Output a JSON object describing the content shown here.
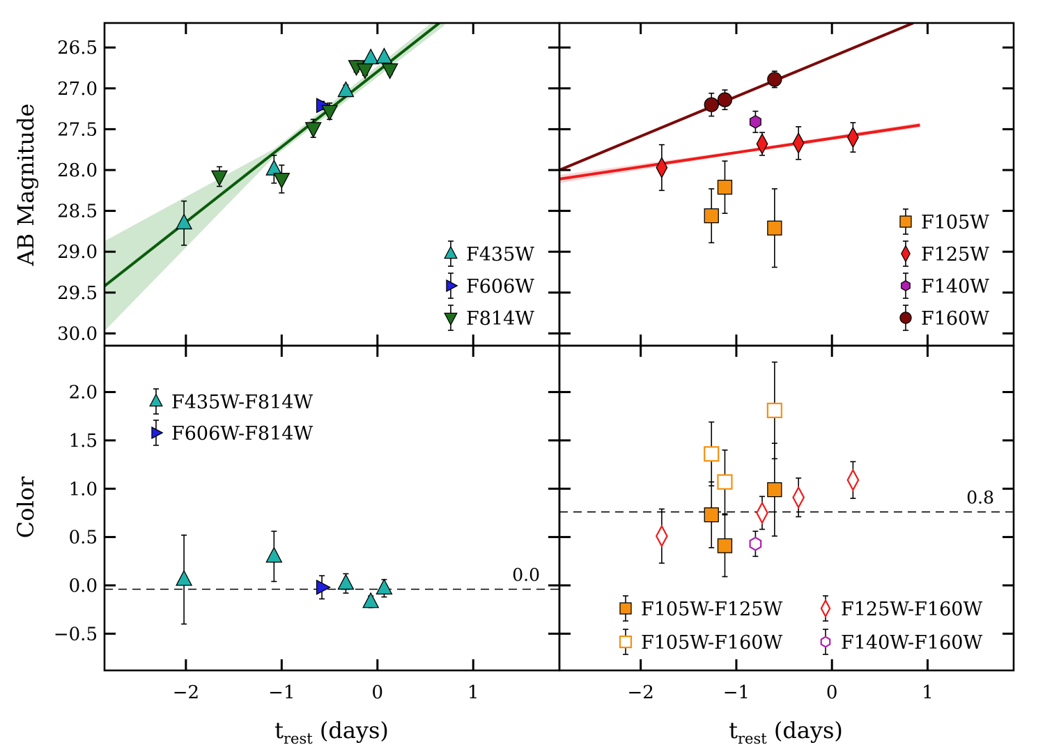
{
  "chart_data": [
    {
      "panel": "top-left",
      "type": "scatter",
      "ylabel": "AB Magnitude",
      "xlim": [
        -2.85,
        1.9
      ],
      "ylim": [
        30.15,
        26.2
      ],
      "y_inverted": true,
      "yticks": [
        "26.5",
        "27.0",
        "27.5",
        "28.0",
        "28.5",
        "29.0",
        "29.5",
        "30.0"
      ],
      "ytick_values": [
        26.5,
        27.0,
        27.5,
        28.0,
        28.5,
        29.0,
        29.5,
        30.0
      ],
      "legend_position": "lower right",
      "series": [
        {
          "name": "F435W",
          "marker": "triangle-up",
          "color": "#20b2aa",
          "points": [
            {
              "x": -2.02,
              "y": 28.65,
              "err": 0.27
            },
            {
              "x": -1.08,
              "y": 27.99,
              "err": 0.17
            },
            {
              "x": -0.33,
              "y": 27.03,
              "err": 0.07
            },
            {
              "x": -0.07,
              "y": 26.63,
              "err": 0.05
            },
            {
              "x": 0.07,
              "y": 26.62,
              "err": 0.05
            }
          ]
        },
        {
          "name": "F606W",
          "marker": "triangle-right",
          "color": "#1f1fe0",
          "points": [
            {
              "x": -0.58,
              "y": 27.21,
              "err": 0.05
            }
          ]
        },
        {
          "name": "F814W",
          "marker": "triangle-down",
          "color": "#1e6e1e",
          "points": [
            {
              "x": -1.65,
              "y": 28.08,
              "err": 0.12
            },
            {
              "x": -1.0,
              "y": 28.11,
              "err": 0.17
            },
            {
              "x": -0.67,
              "y": 27.49,
              "err": 0.11
            },
            {
              "x": -0.5,
              "y": 27.28,
              "err": 0.1
            },
            {
              "x": -0.22,
              "y": 26.73,
              "err": 0.07
            },
            {
              "x": -0.13,
              "y": 26.77,
              "err": 0.07
            },
            {
              "x": 0.13,
              "y": 26.77,
              "err": 0.06
            }
          ]
        }
      ],
      "fit_lines": [
        {
          "color": "#0b5c0b",
          "x": [
            -2.85,
            0.7
          ],
          "y": [
            29.42,
            26.15
          ],
          "band_color": "#a8d1a8",
          "band_width": [
            0.55,
            0.08
          ]
        }
      ]
    },
    {
      "panel": "top-right",
      "type": "scatter",
      "xlim": [
        -2.85,
        1.9
      ],
      "ylim": [
        30.15,
        26.2
      ],
      "y_inverted": true,
      "legend_position": "lower right",
      "series": [
        {
          "name": "F105W",
          "marker": "square",
          "color": "#f5900f",
          "points": [
            {
              "x": -1.26,
              "y": 28.56,
              "err": 0.33
            },
            {
              "x": -1.12,
              "y": 28.21,
              "err": 0.32
            },
            {
              "x": -0.6,
              "y": 28.71,
              "err": 0.48
            }
          ]
        },
        {
          "name": "F125W",
          "marker": "diamond",
          "color": "#f01a1a",
          "points": [
            {
              "x": -1.78,
              "y": 27.97,
              "err": 0.28
            },
            {
              "x": -0.73,
              "y": 27.68,
              "err": 0.14
            },
            {
              "x": -0.35,
              "y": 27.67,
              "err": 0.2
            },
            {
              "x": 0.22,
              "y": 27.6,
              "err": 0.18
            }
          ]
        },
        {
          "name": "F140W",
          "marker": "hexagon",
          "color": "#b020b0",
          "points": [
            {
              "x": -0.8,
              "y": 27.41,
              "err": 0.13
            }
          ]
        },
        {
          "name": "F160W",
          "marker": "circle",
          "color": "#7a0a0a",
          "points": [
            {
              "x": -1.26,
              "y": 27.2,
              "err": 0.14
            },
            {
              "x": -1.12,
              "y": 27.14,
              "err": 0.12
            },
            {
              "x": -0.6,
              "y": 26.89,
              "err": 0.1
            }
          ]
        }
      ],
      "fit_lines": [
        {
          "color": "#7a0a0a",
          "x": [
            -2.85,
            0.85
          ],
          "y": [
            28.0,
            26.2
          ]
        },
        {
          "color": "#f01a1a",
          "x": [
            -2.85,
            0.92
          ],
          "y": [
            28.11,
            27.45
          ],
          "band_color": "#f4b6b6",
          "band_width": [
            0.05,
            0.03
          ]
        }
      ]
    },
    {
      "panel": "bottom-left",
      "type": "scatter",
      "ylabel": "Color",
      "xlabel_main": "t",
      "xlabel_sub": "rest",
      "xlabel_tail": " (days)",
      "xlim": [
        -2.85,
        1.9
      ],
      "ylim": [
        -0.88,
        2.48
      ],
      "yticks": [
        "2.0",
        "1.5",
        "1.0",
        "0.5",
        "0.0",
        "−0.5"
      ],
      "ytick_values": [
        2.0,
        1.5,
        1.0,
        0.5,
        0.0,
        -0.5
      ],
      "xticks": [
        "−2",
        "−1",
        "0",
        "1"
      ],
      "xtick_values": [
        -2,
        -1,
        0,
        1
      ],
      "legend_position": "upper left",
      "reference_line": {
        "y": -0.04,
        "label": "0.0"
      },
      "series": [
        {
          "name": "F435W-F814W",
          "marker": "triangle-up",
          "color": "#20b2aa",
          "points": [
            {
              "x": -2.02,
              "y": 0.06,
              "err": 0.46
            },
            {
              "x": -1.08,
              "y": 0.3,
              "err": 0.26
            },
            {
              "x": -0.33,
              "y": 0.02,
              "err": 0.1
            },
            {
              "x": -0.07,
              "y": -0.17,
              "err": 0.06
            },
            {
              "x": 0.07,
              "y": -0.03,
              "err": 0.09
            }
          ]
        },
        {
          "name": "F606W-F814W",
          "marker": "triangle-right",
          "color": "#1f1fe0",
          "points": [
            {
              "x": -0.58,
              "y": -0.02,
              "err": 0.12
            }
          ]
        }
      ]
    },
    {
      "panel": "bottom-right",
      "type": "scatter",
      "xlabel_main": "t",
      "xlabel_sub": "rest",
      "xlabel_tail": " (days)",
      "xlim": [
        -2.85,
        1.9
      ],
      "ylim": [
        -0.88,
        2.48
      ],
      "xticks": [
        "−2",
        "−1",
        "0",
        "1"
      ],
      "xtick_values": [
        -2,
        -1,
        0,
        1
      ],
      "legend_position": "lower right",
      "reference_line": {
        "y": 0.76,
        "label": "0.8"
      },
      "series": [
        {
          "name": "F105W-F125W",
          "marker": "square",
          "color": "#f5900f",
          "filled": true,
          "points": [
            {
              "x": -1.26,
              "y": 0.73,
              "err": 0.34
            },
            {
              "x": -1.12,
              "y": 0.41,
              "err": 0.32
            },
            {
              "x": -0.6,
              "y": 0.99,
              "err": 0.48
            }
          ]
        },
        {
          "name": "F105W-F160W",
          "marker": "square",
          "color": "#f5900f",
          "filled": false,
          "points": [
            {
              "x": -1.26,
              "y": 1.36,
              "err": 0.33
            },
            {
              "x": -1.12,
              "y": 1.07,
              "err": 0.33
            },
            {
              "x": -0.6,
              "y": 1.81,
              "err": 0.5
            }
          ]
        },
        {
          "name": "F125W-F160W",
          "marker": "diamond",
          "color": "#f01a1a",
          "filled": false,
          "points": [
            {
              "x": -1.78,
              "y": 0.51,
              "err": 0.28
            },
            {
              "x": -0.73,
              "y": 0.75,
              "err": 0.17
            },
            {
              "x": -0.35,
              "y": 0.91,
              "err": 0.2
            },
            {
              "x": 0.22,
              "y": 1.09,
              "err": 0.19
            }
          ]
        },
        {
          "name": "F140W-F160W",
          "marker": "hexagon",
          "color": "#b020b0",
          "filled": false,
          "points": [
            {
              "x": -0.8,
              "y": 0.43,
              "err": 0.13
            }
          ]
        }
      ]
    }
  ]
}
